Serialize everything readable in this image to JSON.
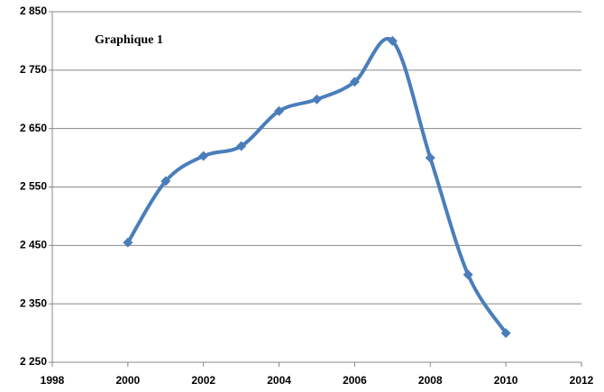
{
  "chart_data": {
    "type": "line",
    "title": "Graphique 1",
    "x": [
      2000,
      2001,
      2002,
      2003,
      2004,
      2005,
      2006,
      2007,
      2008,
      2009,
      2010
    ],
    "series": [
      {
        "color": "#4a7ebb",
        "values": [
          2455,
          2560,
          2603,
          2620,
          2680,
          2700,
          2730,
          2800,
          2600,
          2400,
          2300
        ]
      }
    ],
    "xlim": [
      1998,
      2012
    ],
    "xticks": [
      1998,
      2000,
      2002,
      2004,
      2006,
      2008,
      2010,
      2012
    ],
    "ylim": [
      2250,
      2850
    ],
    "yticks": [
      {
        "value": 2250,
        "label": "2 250"
      },
      {
        "value": 2350,
        "label": "2 350"
      },
      {
        "value": 2450,
        "label": "2 450"
      },
      {
        "value": 2550,
        "label": "2 550"
      },
      {
        "value": 2650,
        "label": "2 650"
      },
      {
        "value": 2750,
        "label": "2 750"
      },
      {
        "value": 2850,
        "label": "2 850"
      }
    ],
    "grid": true,
    "smooth": true
  }
}
